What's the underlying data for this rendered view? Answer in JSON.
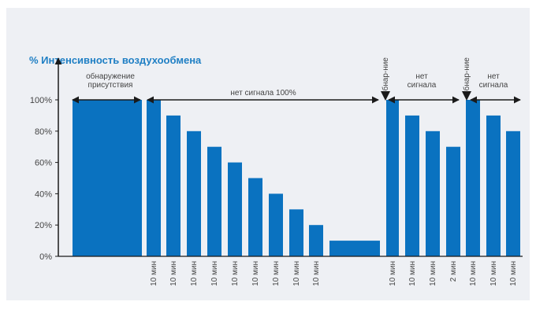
{
  "chart_data": {
    "type": "bar",
    "title": "% Интенсивность воздухообмена",
    "title_color": "#1f7fc4",
    "bar_color": "#0a72c0",
    "ylim": [
      0,
      100
    ],
    "yticks": [
      "0%",
      "20%",
      "40%",
      "60%",
      "80%",
      "100%"
    ],
    "values": [
      100,
      100,
      90,
      80,
      70,
      60,
      50,
      40,
      30,
      20,
      10,
      100,
      90,
      80,
      70,
      100,
      90,
      80
    ],
    "x_labels": [
      "",
      "10 мин",
      "10 мин",
      "10 мин",
      "10 мин",
      "10 мин",
      "10 мин",
      "10 мин",
      "10 мин",
      "10 мин",
      "",
      "10 мин",
      "10 мин",
      "10 мин",
      "2 мин",
      "10 мин",
      "10 мин",
      "10 мин"
    ],
    "annotations": {
      "presence": [
        "обнаружение",
        "присутствия"
      ],
      "no_signal_100": "нет сигнала 100%",
      "detect_short_1": "обнар-ние",
      "no_signal_1": [
        "нет",
        "сигнала"
      ],
      "detect_short_2": "обнар-ние",
      "no_signal_2": [
        "нет",
        "сигнала"
      ]
    }
  }
}
